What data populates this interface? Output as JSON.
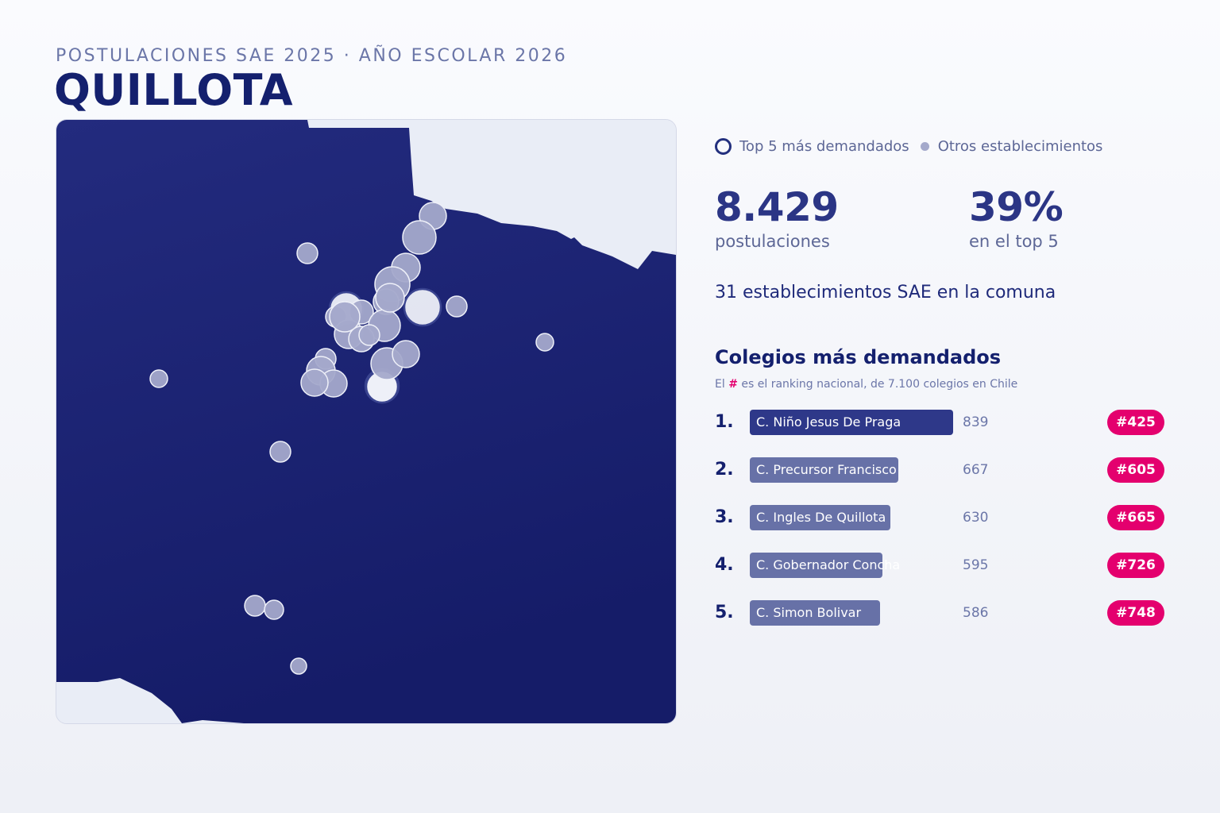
{
  "header": {
    "subtitle": "POSTULACIONES SAE 2025 · AÑO ESCOLAR 2026",
    "title": "QUILLOTA"
  },
  "legend": {
    "top5_label": "Top 5 más demandados",
    "others_label": "Otros establecimientos"
  },
  "stats": {
    "total_value": "8.429",
    "total_label": "postulaciones",
    "share_value": "39%",
    "share_label": "en el top 5"
  },
  "count_line": "31 establecimientos SAE en la comuna",
  "ranking": {
    "title": "Colegios más demandados",
    "note_prefix": "El",
    "note_hash": "#",
    "note_suffix": "es el ranking nacional, de 7.100 colegios en Chile",
    "items": [
      {
        "pos": "1.",
        "name": "C. Niño Jesus De Praga",
        "value": 839,
        "rank": "#425"
      },
      {
        "pos": "2.",
        "name": "C. Precursor Francisco",
        "value": 667,
        "rank": "#605"
      },
      {
        "pos": "3.",
        "name": "C. Ingles De Quillota",
        "value": 630,
        "rank": "#665"
      },
      {
        "pos": "4.",
        "name": "C. Gobernador Concha",
        "value": 595,
        "rank": "#726"
      },
      {
        "pos": "5.",
        "name": "C. Simon Bolivar",
        "value": 586,
        "rank": "#748"
      }
    ]
  },
  "map": {
    "commune_color": "#1c2470",
    "outside_color": "#e9edf6",
    "marker_color": "#a4a9cb",
    "top5_marker_color": "#eef0f8"
  }
}
